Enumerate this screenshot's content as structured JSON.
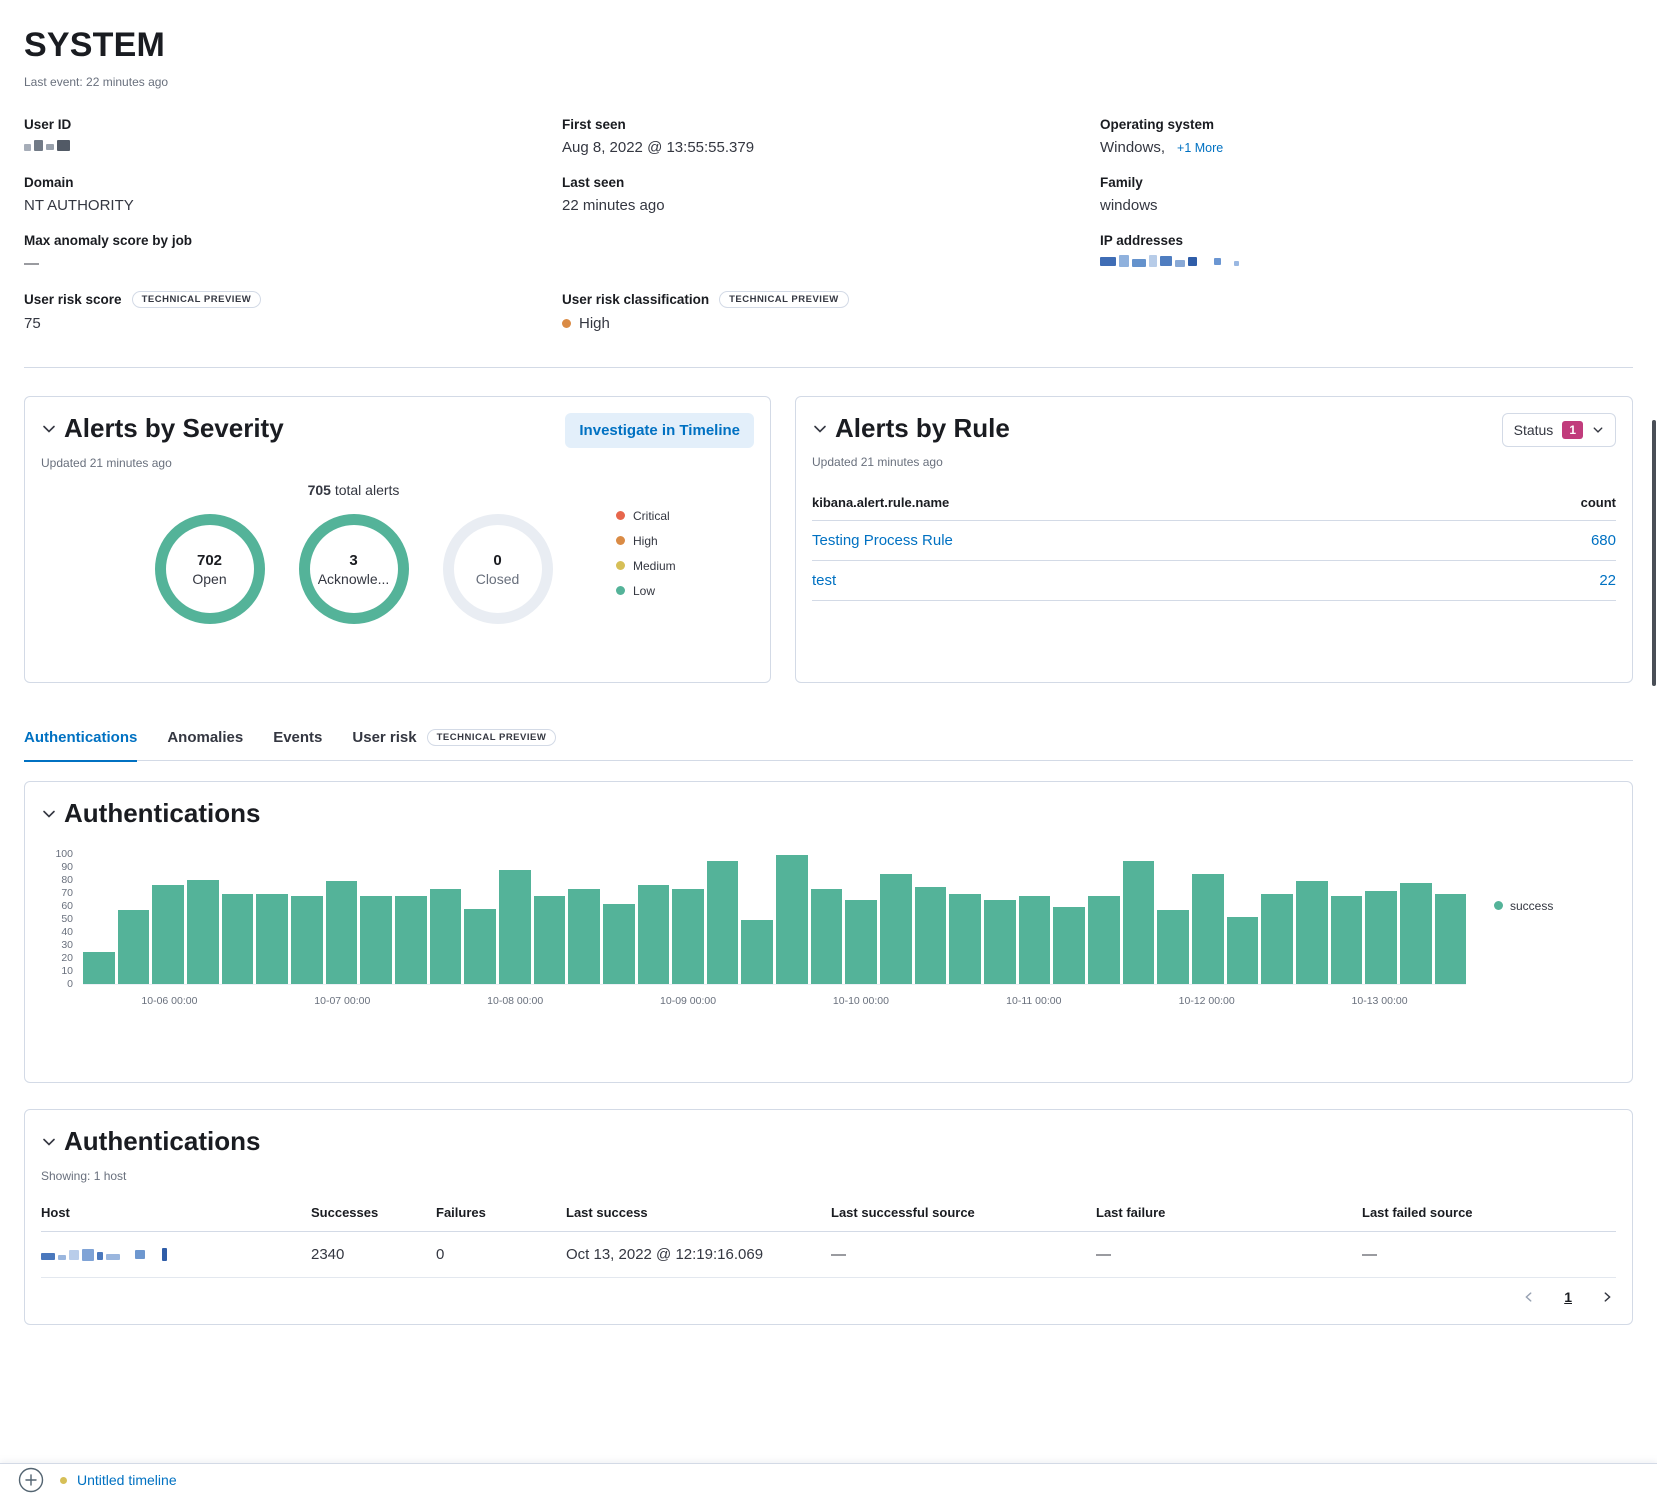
{
  "header": {
    "title": "SYSTEM",
    "last_event": "Last event: 22 minutes ago"
  },
  "overview": {
    "user_id_label": "User ID",
    "domain_label": "Domain",
    "domain_value": "NT AUTHORITY",
    "max_anomaly_label": "Max anomaly score by job",
    "max_anomaly_value": "—",
    "risk_score_label": "User risk score",
    "risk_score_value": "75",
    "technical_preview": "TECHNICAL PREVIEW",
    "first_seen_label": "First seen",
    "first_seen_value": "Aug 8, 2022 @ 13:55:55.379",
    "last_seen_label": "Last seen",
    "last_seen_value": "22 minutes ago",
    "risk_classification_label": "User risk classification",
    "risk_classification_value": "High",
    "risk_classification_color": "#DA8B45",
    "os_label": "Operating system",
    "os_value": "Windows,",
    "os_more_link": "+1 More",
    "family_label": "Family",
    "family_value": "windows",
    "ip_label": "IP addresses"
  },
  "alerts_by_severity": {
    "title": "Alerts by Severity",
    "investigate_button": "Investigate in Timeline",
    "updated": "Updated 21 minutes ago",
    "total_count": "705",
    "total_label": "total alerts",
    "donuts": [
      {
        "value": "702",
        "label": "Open",
        "ring_color": "#54B399"
      },
      {
        "value": "3",
        "label": "Acknowle...",
        "ring_color": "#54B399"
      },
      {
        "value": "0",
        "label": "Closed",
        "ring_color": "#E9EDF3"
      }
    ],
    "legend": [
      {
        "label": "Critical",
        "color": "#E7664C"
      },
      {
        "label": "High",
        "color": "#DA8B45"
      },
      {
        "label": "Medium",
        "color": "#D6BF57"
      },
      {
        "label": "Low",
        "color": "#54B399"
      }
    ]
  },
  "alerts_by_rule": {
    "title": "Alerts by Rule",
    "status_label": "Status",
    "status_count": "1",
    "status_badge_color": "#C13C7C",
    "updated": "Updated 21 minutes ago",
    "columns": {
      "name": "kibana.alert.rule.name",
      "count": "count"
    },
    "rows": [
      {
        "name": "Testing Process Rule",
        "count": "680"
      },
      {
        "name": "test",
        "count": "22"
      }
    ]
  },
  "tabs": [
    {
      "label": "Authentications"
    },
    {
      "label": "Anomalies"
    },
    {
      "label": "Events"
    },
    {
      "label": "User risk",
      "badge": "TECHNICAL PREVIEW"
    }
  ],
  "auth_chart_panel": {
    "title": "Authentications",
    "legend_label": "success"
  },
  "chart_data": {
    "type": "bar",
    "title": "Authentications",
    "series": [
      {
        "name": "success",
        "values": [
          25,
          57,
          77,
          81,
          70,
          70,
          68,
          80,
          68,
          68,
          74,
          58,
          88,
          68,
          74,
          62,
          77,
          74,
          95,
          50,
          100,
          74,
          65,
          85,
          75,
          70,
          65,
          68,
          60,
          68,
          95,
          57,
          85,
          52,
          70,
          80,
          68,
          72,
          78,
          70
        ]
      }
    ],
    "x_tick_labels": [
      "10-06 00:00",
      "10-07 00:00",
      "10-08 00:00",
      "10-09 00:00",
      "10-10 00:00",
      "10-11 00:00",
      "10-12 00:00",
      "10-13 00:00"
    ],
    "y_ticks": [
      0,
      10,
      20,
      30,
      40,
      50,
      60,
      70,
      80,
      90,
      100
    ],
    "ylim": [
      0,
      100
    ],
    "xlabel": "",
    "ylabel": "",
    "bar_color": "#54B399",
    "grid": false,
    "legend_position": "right"
  },
  "auth_table_panel": {
    "title": "Authentications",
    "showing": "Showing: 1 host",
    "columns": [
      "Host",
      "Successes",
      "Failures",
      "Last success",
      "Last successful source",
      "Last failure",
      "Last failed source"
    ],
    "rows": [
      {
        "successes": "2340",
        "failures": "0",
        "last_success": "Oct 13, 2022 @ 12:19:16.069",
        "last_successful_source": "—",
        "last_failure": "—",
        "last_failed_source": "—"
      }
    ],
    "pagination": {
      "current_page": "1"
    }
  },
  "timeline_bar": {
    "label": "Untitled timeline",
    "dot_color": "#D6BF57"
  }
}
